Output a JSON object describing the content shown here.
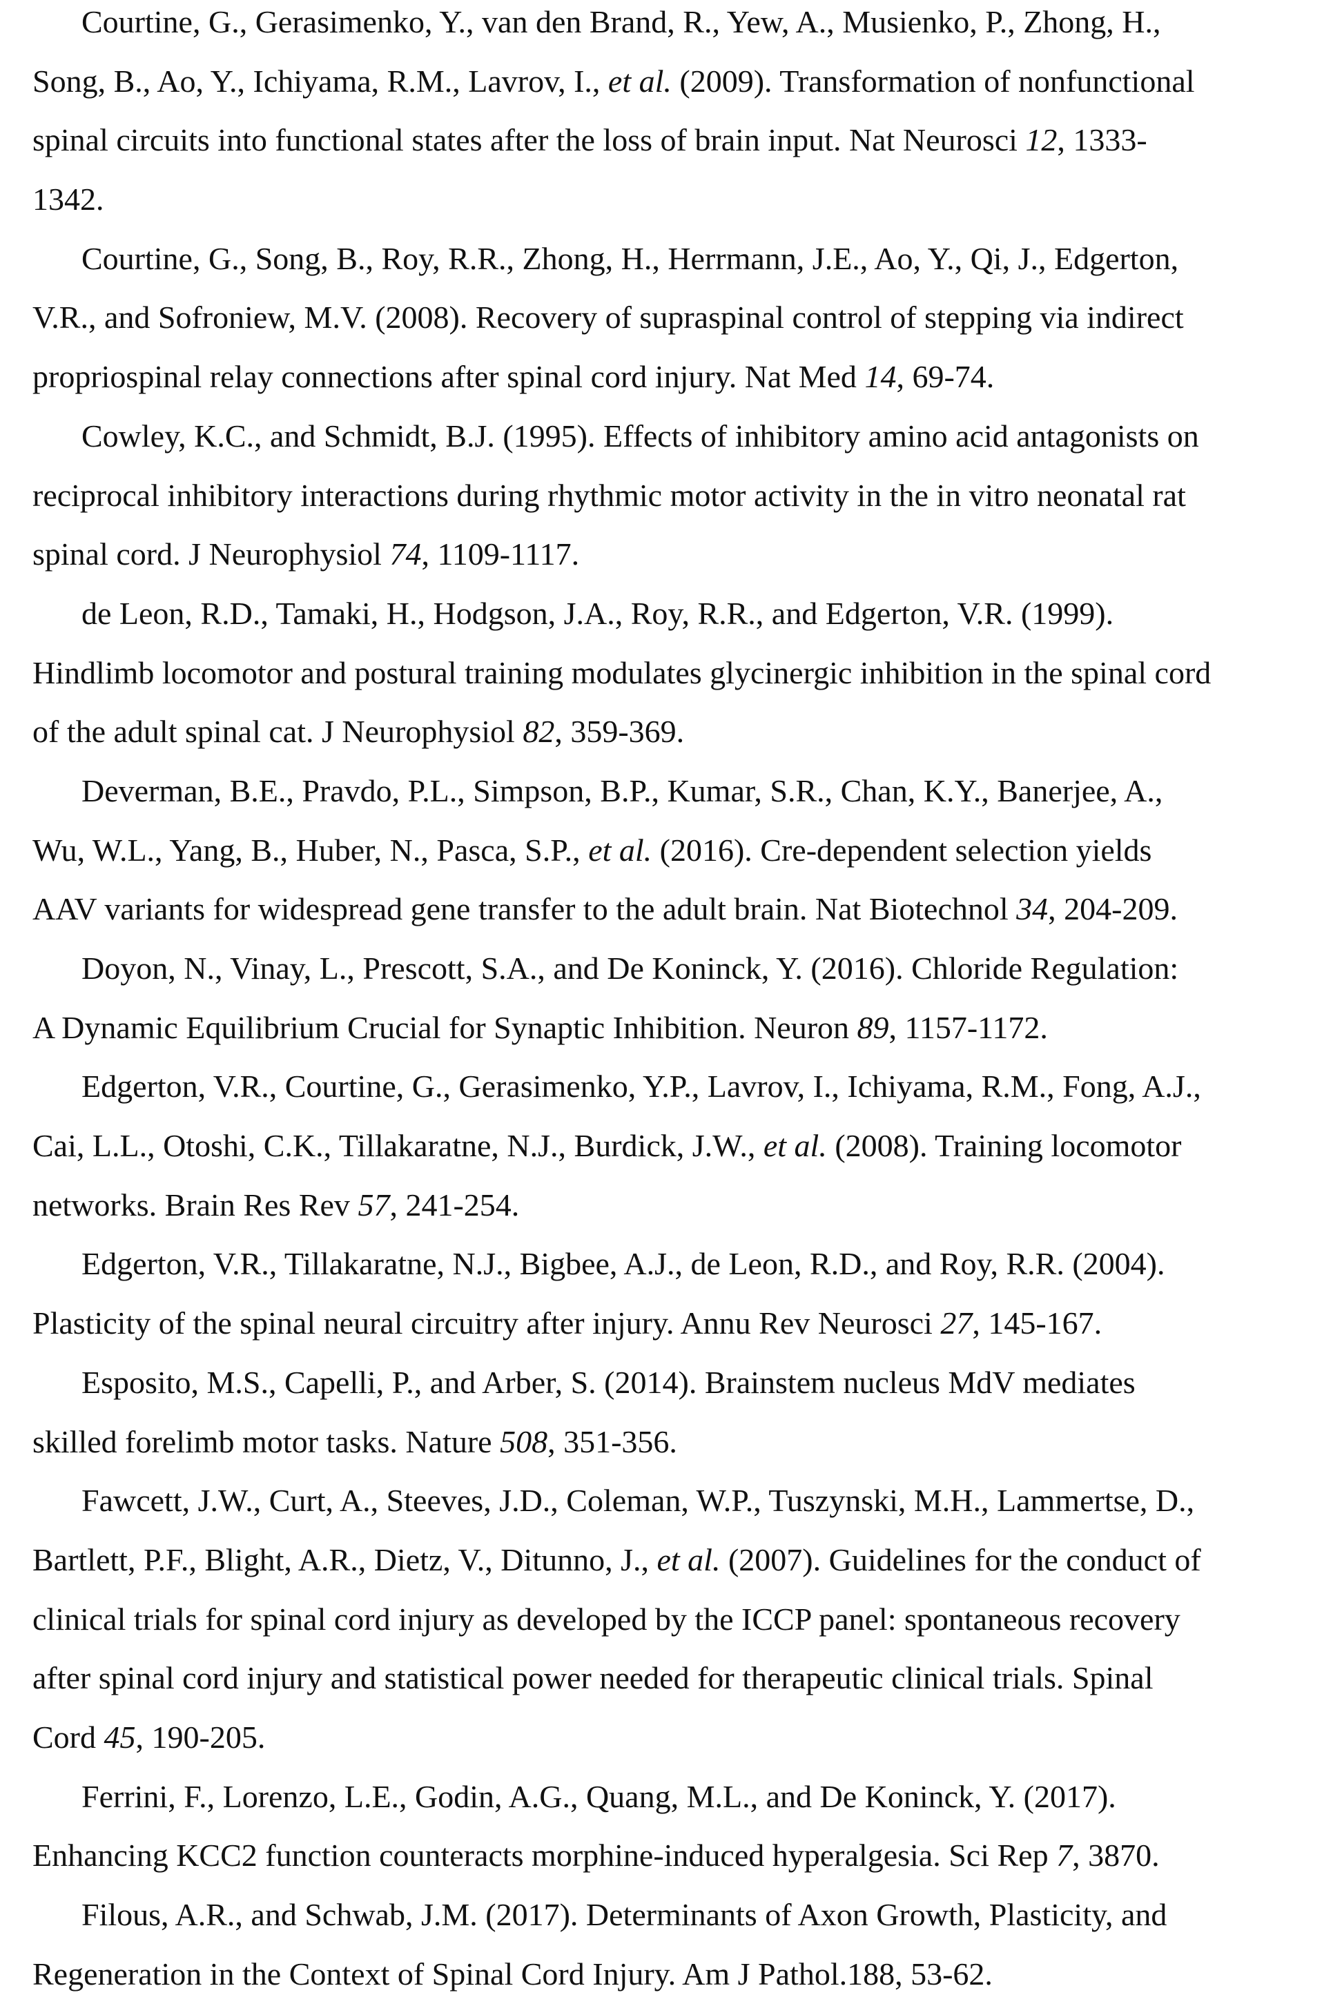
{
  "references": [
    {
      "lines": [
        [
          {
            "t": "Courtine, G., Gerasimenko, Y., van den Brand, R., Yew, A., Musienko, P., Zhong, H.,"
          }
        ],
        [
          {
            "t": "Song, B., Ao, Y., Ichiyama, R.M., Lavrov, I., "
          },
          {
            "t": "et al.",
            "i": true
          },
          {
            "t": " (2009). Transformation of nonfunctional"
          }
        ],
        [
          {
            "t": "spinal circuits into functional states after the loss of brain input. Nat Neurosci "
          },
          {
            "t": "12",
            "i": true
          },
          {
            "t": ", 1333-"
          }
        ],
        [
          {
            "t": "1342."
          }
        ]
      ]
    },
    {
      "lines": [
        [
          {
            "t": "Courtine, G., Song, B., Roy, R.R., Zhong, H., Herrmann, J.E., Ao, Y., Qi, J., Edgerton,"
          }
        ],
        [
          {
            "t": "V.R., and Sofroniew, M.V. (2008). Recovery of supraspinal control of stepping via indirect"
          }
        ],
        [
          {
            "t": "propriospinal relay connections after spinal cord injury. Nat Med "
          },
          {
            "t": "14",
            "i": true
          },
          {
            "t": ", 69-74."
          }
        ]
      ]
    },
    {
      "lines": [
        [
          {
            "t": "Cowley, K.C., and Schmidt, B.J. (1995). Effects of inhibitory amino acid antagonists on"
          }
        ],
        [
          {
            "t": "reciprocal inhibitory interactions during rhythmic motor activity in the in vitro neonatal rat"
          }
        ],
        [
          {
            "t": "spinal cord. J Neurophysiol "
          },
          {
            "t": "74",
            "i": true
          },
          {
            "t": ", 1109-1117."
          }
        ]
      ]
    },
    {
      "lines": [
        [
          {
            "t": "de Leon, R.D., Tamaki, H., Hodgson, J.A., Roy, R.R., and Edgerton, V.R. (1999)."
          }
        ],
        [
          {
            "t": "Hindlimb locomotor and postural training modulates glycinergic inhibition in the spinal cord"
          }
        ],
        [
          {
            "t": "of the adult spinal cat. J Neurophysiol "
          },
          {
            "t": "82",
            "i": true
          },
          {
            "t": ", 359-369."
          }
        ]
      ]
    },
    {
      "lines": [
        [
          {
            "t": "Deverman, B.E., Pravdo, P.L., Simpson, B.P., Kumar, S.R., Chan, K.Y., Banerjee, A.,"
          }
        ],
        [
          {
            "t": "Wu, W.L., Yang, B., Huber, N., Pasca, S.P., "
          },
          {
            "t": "et al.",
            "i": true
          },
          {
            "t": " (2016). Cre-dependent selection yields"
          }
        ],
        [
          {
            "t": "AAV variants for widespread gene transfer to the adult brain. Nat Biotechnol "
          },
          {
            "t": "34",
            "i": true
          },
          {
            "t": ", 204-209."
          }
        ]
      ]
    },
    {
      "lines": [
        [
          {
            "t": "Doyon, N., Vinay, L., Prescott, S.A., and De Koninck, Y. (2016). Chloride Regulation:"
          }
        ],
        [
          {
            "t": "A Dynamic Equilibrium Crucial for Synaptic Inhibition. Neuron "
          },
          {
            "t": "89",
            "i": true
          },
          {
            "t": ", 1157-1172."
          }
        ]
      ]
    },
    {
      "lines": [
        [
          {
            "t": "Edgerton, V.R., Courtine, G., Gerasimenko, Y.P., Lavrov, I., Ichiyama, R.M., Fong, A.J.,"
          }
        ],
        [
          {
            "t": "Cai, L.L., Otoshi, C.K., Tillakaratne, N.J., Burdick, J.W., "
          },
          {
            "t": "et al.",
            "i": true
          },
          {
            "t": " (2008). Training locomotor"
          }
        ],
        [
          {
            "t": "networks. Brain Res Rev "
          },
          {
            "t": "57",
            "i": true
          },
          {
            "t": ", 241-254."
          }
        ]
      ]
    },
    {
      "lines": [
        [
          {
            "t": "Edgerton, V.R., Tillakaratne, N.J., Bigbee, A.J., de Leon, R.D., and Roy, R.R. (2004)."
          }
        ],
        [
          {
            "t": "Plasticity of the spinal neural circuitry after injury. Annu Rev Neurosci "
          },
          {
            "t": "27",
            "i": true
          },
          {
            "t": ", 145-167."
          }
        ]
      ]
    },
    {
      "lines": [
        [
          {
            "t": "Esposito, M.S., Capelli, P., and Arber, S. (2014). Brainstem nucleus MdV mediates"
          }
        ],
        [
          {
            "t": "skilled forelimb motor tasks. Nature "
          },
          {
            "t": "508",
            "i": true
          },
          {
            "t": ", 351-356."
          }
        ]
      ]
    },
    {
      "lines": [
        [
          {
            "t": "Fawcett, J.W., Curt, A., Steeves, J.D., Coleman, W.P., Tuszynski, M.H., Lammertse, D.,"
          }
        ],
        [
          {
            "t": "Bartlett, P.F., Blight, A.R., Dietz, V., Ditunno, J., "
          },
          {
            "t": "et al.",
            "i": true
          },
          {
            "t": " (2007). Guidelines for the conduct of"
          }
        ],
        [
          {
            "t": "clinical trials for spinal cord injury as developed by the ICCP panel: spontaneous recovery"
          }
        ],
        [
          {
            "t": "after spinal cord injury and statistical power needed for therapeutic clinical trials. Spinal"
          }
        ],
        [
          {
            "t": "Cord "
          },
          {
            "t": "45",
            "i": true
          },
          {
            "t": ", 190-205."
          }
        ]
      ]
    },
    {
      "lines": [
        [
          {
            "t": "Ferrini, F., Lorenzo, L.E., Godin, A.G., Quang, M.L., and De Koninck, Y. (2017)."
          }
        ],
        [
          {
            "t": "Enhancing KCC2 function counteracts morphine-induced hyperalgesia. Sci Rep "
          },
          {
            "t": "7",
            "i": true
          },
          {
            "t": ", 3870."
          }
        ]
      ]
    },
    {
      "lines": [
        [
          {
            "t": "Filous, A.R., and Schwab, J.M. (2017). Determinants of Axon Growth, Plasticity, and"
          }
        ],
        [
          {
            "t": "Regeneration in the Context of Spinal Cord Injury. Am J Pathol.188, 53-62."
          }
        ]
      ]
    }
  ]
}
